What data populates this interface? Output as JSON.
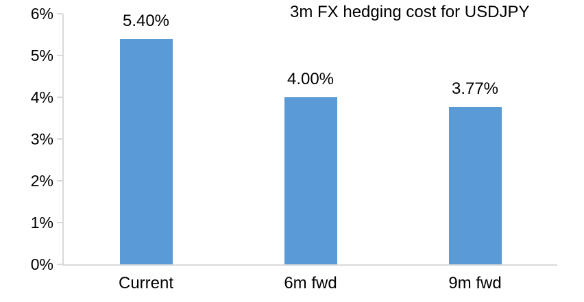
{
  "chart_data": {
    "type": "bar",
    "title": "3m FX hedging cost for USDJPY",
    "categories": [
      "Current",
      "6m fwd",
      "9m fwd"
    ],
    "values": [
      5.4,
      4.0,
      3.77
    ],
    "value_labels": [
      "5.40%",
      "4.00%",
      "3.77%"
    ],
    "xlabel": "",
    "ylabel": "",
    "ylim": [
      0,
      6
    ],
    "y_tick_labels": [
      "0%",
      "1%",
      "2%",
      "3%",
      "4%",
      "5%",
      "6%"
    ],
    "grid": "off",
    "legend": "none",
    "colors": {
      "bar": "#5B9BD5",
      "axis": "#D9D9D9",
      "text": "#000000",
      "background": "#FFFFFF"
    }
  }
}
